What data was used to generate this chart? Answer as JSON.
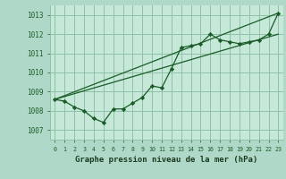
{
  "title": "Graphe pression niveau de la mer (hPa)",
  "background_color": "#5aa06e",
  "plot_bg_color": "#c5e8d8",
  "outer_bg_color": "#b0d8c8",
  "grid_color": "#90c0a8",
  "line_color": "#1a5c28",
  "marker_color": "#1a5c28",
  "xlabel_bg": "#3a8050",
  "xlabel_color": "#1a3c20",
  "tick_color": "#1a5c28",
  "xlim": [
    -0.5,
    23.5
  ],
  "ylim": [
    1006.5,
    1013.5
  ],
  "yticks": [
    1007,
    1008,
    1009,
    1010,
    1011,
    1012,
    1013
  ],
  "xticks": [
    0,
    1,
    2,
    3,
    4,
    5,
    6,
    7,
    8,
    9,
    10,
    11,
    12,
    13,
    14,
    15,
    16,
    17,
    18,
    19,
    20,
    21,
    22,
    23
  ],
  "series1_x": [
    0,
    1,
    2,
    3,
    4,
    5,
    6,
    7,
    8,
    9,
    10,
    11,
    12,
    13,
    14,
    15,
    16,
    17,
    18,
    19,
    20,
    21,
    22,
    23
  ],
  "series1_y": [
    1008.6,
    1008.5,
    1008.2,
    1008.0,
    1007.6,
    1007.4,
    1008.1,
    1008.1,
    1008.4,
    1008.7,
    1009.3,
    1009.2,
    1010.2,
    1011.3,
    1011.4,
    1011.5,
    1012.0,
    1011.7,
    1011.6,
    1011.5,
    1011.6,
    1011.7,
    1012.0,
    1013.1
  ],
  "trend1_x": [
    0,
    23
  ],
  "trend1_y": [
    1008.6,
    1013.1
  ],
  "trend2_x": [
    0,
    23
  ],
  "trend2_y": [
    1008.6,
    1012.0
  ]
}
